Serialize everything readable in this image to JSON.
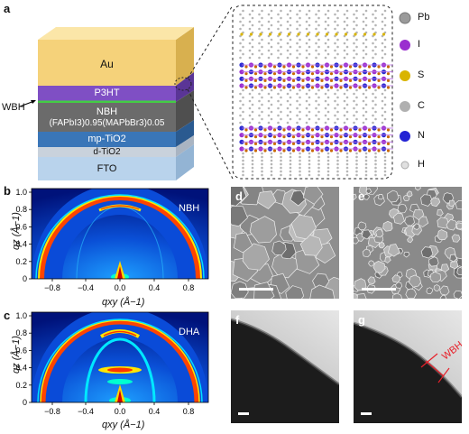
{
  "panel_a": {
    "label": "a",
    "layers": [
      "Au",
      "P3HT",
      "NBH",
      "(FAPbI3)0.95(MAPbBr3)0.05",
      "mp-TiO2",
      "d-TiO2",
      "FTO"
    ],
    "wbh_label": "WBH",
    "legend": [
      "Pb",
      "I",
      "S",
      "C",
      "N",
      "H"
    ],
    "colors": {
      "Au": "#f5d27a",
      "P3HT": "#7f4fc4",
      "Perovskite": "#6b6b6b",
      "mpTiO2": "#3a76b8",
      "dTiO2": "#c9d2dc",
      "FTO": "#b9d3ec",
      "WBH": "#44cc44"
    }
  },
  "panel_b": {
    "label": "b",
    "tag": "NBH"
  },
  "panel_c": {
    "label": "c",
    "tag": "DHA"
  },
  "giwaxs": {
    "xlabel": "qxy (Å−1)",
    "ylabel": "qz (Å−1)",
    "xticks": [
      "−0.8",
      "−0.4",
      "0.0",
      "0.4",
      "0.8"
    ],
    "yticks": [
      "0",
      "0.2",
      "0.4",
      "0.6",
      "0.8",
      "1.0"
    ]
  },
  "panel_d": {
    "label": "d"
  },
  "panel_e": {
    "label": "e"
  },
  "panel_f": {
    "label": "f"
  },
  "panel_g": {
    "label": "g",
    "annotation": "WBH"
  }
}
